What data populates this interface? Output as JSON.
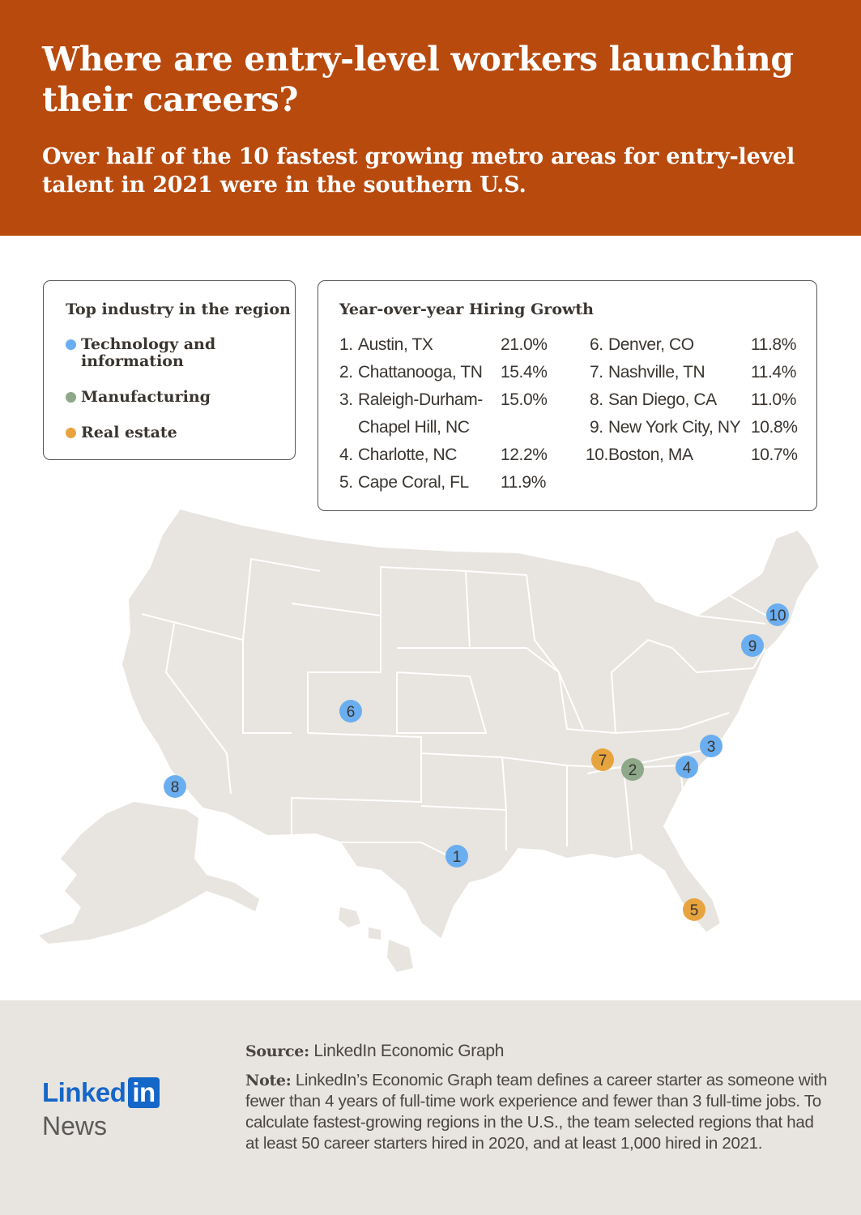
{
  "header": {
    "title": "Where are entry-level workers launching their careers?",
    "subtitle": "Over half of the 10 fastest growing metro areas for entry-level talent in 2021 were in the southern U.S."
  },
  "legend": {
    "title": "Top industry in the region",
    "items": [
      {
        "label": "Technology and information",
        "color": "#6aaef0"
      },
      {
        "label": "Manufacturing",
        "color": "#8ea889"
      },
      {
        "label": "Real estate",
        "color": "#e7a43e"
      }
    ]
  },
  "growth": {
    "title": "Year-over-year Hiring Growth",
    "rows": [
      {
        "num": "1.",
        "city": "Austin, TX",
        "pct": "21.0%"
      },
      {
        "num": "2.",
        "city": "Chattanooga, TN",
        "pct": "15.4%"
      },
      {
        "num": "3.",
        "city": "Raleigh-Durham-",
        "city2": "Chapel Hill, NC",
        "pct": "15.0%"
      },
      {
        "num": "4.",
        "city": "Charlotte, NC",
        "pct": "12.2%"
      },
      {
        "num": "5.",
        "city": "Cape Coral, FL",
        "pct": "11.9%"
      },
      {
        "num": "6.",
        "city": "Denver, CO",
        "pct": "11.8%"
      },
      {
        "num": "7.",
        "city": "Nashville, TN",
        "pct": "11.4%"
      },
      {
        "num": "8.",
        "city": "San Diego, CA",
        "pct": "11.0%"
      },
      {
        "num": "9.",
        "city": "New York City, NY",
        "pct": "10.8%"
      },
      {
        "num": "10.",
        "city": "Boston, MA",
        "pct": "10.7%"
      }
    ]
  },
  "map": {
    "markers": [
      {
        "label": "1",
        "industry": "Technology and information"
      },
      {
        "label": "2",
        "industry": "Manufacturing"
      },
      {
        "label": "3",
        "industry": "Technology and information"
      },
      {
        "label": "4",
        "industry": "Technology and information"
      },
      {
        "label": "5",
        "industry": "Real estate"
      },
      {
        "label": "6",
        "industry": "Technology and information"
      },
      {
        "label": "7",
        "industry": "Real estate"
      },
      {
        "label": "8",
        "industry": "Technology and information"
      },
      {
        "label": "9",
        "industry": "Technology and information"
      },
      {
        "label": "10",
        "industry": "Technology and information"
      }
    ]
  },
  "footer": {
    "source_label": "Source:",
    "source_text": "LinkedIn Economic Graph",
    "note_label": "Note:",
    "note_text": "LinkedIn’s Economic Graph team defines a career starter as someone with fewer than 4 years of full-time work experience and fewer than 3 full-time jobs. To calculate fastest-growing regions in the U.S., the team selected regions that had at least 50 career starters hired in 2020, and at least 1,000 hired in 2021.",
    "logo_linked": "Linked",
    "logo_in": "in",
    "logo_news": "News"
  }
}
